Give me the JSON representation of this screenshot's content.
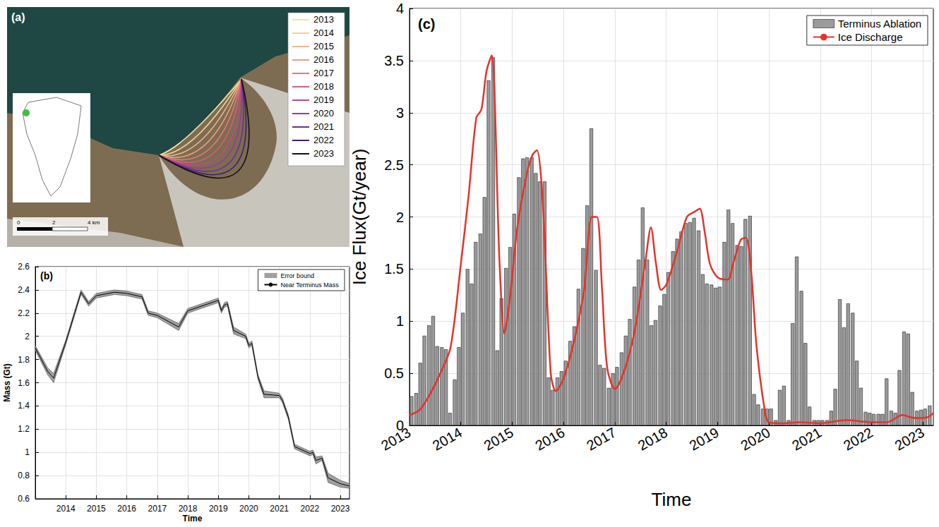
{
  "map": {
    "label": "(a)",
    "legend": [
      {
        "year": "2013",
        "color": "#f5e6a6"
      },
      {
        "year": "2014",
        "color": "#f2d196"
      },
      {
        "year": "2015",
        "color": "#efb98b"
      },
      {
        "year": "2016",
        "color": "#ea9e80"
      },
      {
        "year": "2017",
        "color": "#e5787a"
      },
      {
        "year": "2018",
        "color": "#d95c7e"
      },
      {
        "year": "2019",
        "color": "#bd4a8c"
      },
      {
        "year": "2020",
        "color": "#983b96"
      },
      {
        "year": "2021",
        "color": "#6c2d98"
      },
      {
        "year": "2022",
        "color": "#44206e"
      },
      {
        "year": "2023",
        "color": "#111111"
      }
    ],
    "scale_labels": [
      "0",
      "2",
      "4 km"
    ]
  },
  "chart_data": [
    {
      "type": "line",
      "label": "(b)",
      "x_label": "Time",
      "y_label": "Mass (Gt)",
      "xlim": [
        2013,
        2023.3
      ],
      "xticks": [
        2014,
        2015,
        2016,
        2017,
        2018,
        2019,
        2020,
        2021,
        2022,
        2023
      ],
      "ylim": [
        0.6,
        2.6
      ],
      "yticks": [
        0.6,
        0.8,
        1,
        1.2,
        1.4,
        1.6,
        1.8,
        2,
        2.2,
        2.4,
        2.6
      ],
      "grid": true,
      "legend": "upper right",
      "x": [
        2013.0,
        2013.4,
        2013.6,
        2014.0,
        2014.5,
        2014.75,
        2015.0,
        2015.6,
        2016.0,
        2016.5,
        2016.7,
        2017.0,
        2017.7,
        2018.0,
        2019.0,
        2019.1,
        2019.2,
        2019.3,
        2019.5,
        2019.9,
        2020.0,
        2020.1,
        2020.3,
        2020.5,
        2021.0,
        2021.1,
        2021.3,
        2021.5,
        2022.0,
        2022.1,
        2022.2,
        2022.4,
        2022.6,
        2023.0,
        2023.3
      ],
      "series": [
        {
          "name": "Error bound",
          "type": "band",
          "color": "#a0a0a0",
          "lower": [
            1.88,
            1.67,
            1.6,
            1.93,
            2.36,
            2.26,
            2.33,
            2.36,
            2.35,
            2.32,
            2.18,
            2.16,
            2.05,
            2.2,
            2.29,
            2.2,
            2.25,
            2.26,
            2.02,
            1.98,
            1.9,
            1.92,
            1.63,
            1.47,
            1.47,
            1.43,
            1.28,
            1.03,
            0.97,
            0.98,
            0.9,
            0.93,
            0.74,
            0.7,
            0.69
          ],
          "upper": [
            1.92,
            1.73,
            1.68,
            1.97,
            2.4,
            2.3,
            2.37,
            2.4,
            2.39,
            2.36,
            2.22,
            2.2,
            2.11,
            2.24,
            2.33,
            2.24,
            2.29,
            2.3,
            2.08,
            2.02,
            1.94,
            1.96,
            1.67,
            1.53,
            1.51,
            1.47,
            1.32,
            1.07,
            1.01,
            1.02,
            0.96,
            0.97,
            0.82,
            0.76,
            0.73
          ]
        },
        {
          "name": "Near Terminus Mass",
          "type": "line",
          "color": "#000000",
          "values": [
            1.9,
            1.7,
            1.64,
            1.95,
            2.38,
            2.28,
            2.35,
            2.38,
            2.37,
            2.34,
            2.2,
            2.18,
            2.08,
            2.22,
            2.31,
            2.22,
            2.27,
            2.28,
            2.05,
            2.0,
            1.92,
            1.94,
            1.65,
            1.5,
            1.49,
            1.45,
            1.3,
            1.05,
            0.99,
            1.0,
            0.93,
            0.95,
            0.78,
            0.73,
            0.71
          ]
        }
      ]
    },
    {
      "type": "bar",
      "label": "(c)",
      "x_label": "Time",
      "y_label": "Ice Flux(Gt/year)",
      "xlim": [
        2013,
        2023.2
      ],
      "xticks": [
        2013,
        2014,
        2015,
        2016,
        2017,
        2018,
        2019,
        2020,
        2021,
        2022,
        2023
      ],
      "ylim": [
        0,
        4
      ],
      "yticks": [
        0,
        0.5,
        1,
        1.5,
        2,
        2.5,
        3,
        3.5,
        4
      ],
      "grid": true,
      "legend": "upper right",
      "series": [
        {
          "name": "Terminus Ablation",
          "type": "bar",
          "color": "#9b9b9b",
          "x": [
            2013.04,
            2013.13,
            2013.21,
            2013.29,
            2013.38,
            2013.46,
            2013.54,
            2013.63,
            2013.71,
            2013.79,
            2013.88,
            2013.96,
            2014.04,
            2014.13,
            2014.21,
            2014.29,
            2014.38,
            2014.46,
            2014.54,
            2014.63,
            2014.71,
            2014.79,
            2014.88,
            2014.96,
            2015.04,
            2015.13,
            2015.21,
            2015.29,
            2015.38,
            2015.46,
            2015.54,
            2015.63,
            2015.71,
            2015.79,
            2015.88,
            2015.96,
            2016.04,
            2016.13,
            2016.21,
            2016.29,
            2016.38,
            2016.46,
            2016.54,
            2016.63,
            2016.71,
            2016.79,
            2016.88,
            2016.96,
            2017.04,
            2017.13,
            2017.21,
            2017.29,
            2017.38,
            2017.46,
            2017.54,
            2017.63,
            2017.71,
            2017.79,
            2017.88,
            2017.96,
            2018.04,
            2018.13,
            2018.21,
            2018.29,
            2018.38,
            2018.46,
            2018.54,
            2018.63,
            2018.71,
            2018.79,
            2018.88,
            2018.96,
            2019.04,
            2019.13,
            2019.21,
            2019.29,
            2019.38,
            2019.46,
            2019.54,
            2019.63,
            2019.71,
            2019.79,
            2019.88,
            2019.96,
            2020.04,
            2020.13,
            2020.21,
            2020.29,
            2020.38,
            2020.46,
            2020.54,
            2020.63,
            2020.71,
            2020.79,
            2020.88,
            2020.96,
            2021.04,
            2021.13,
            2021.21,
            2021.29,
            2021.38,
            2021.46,
            2021.54,
            2021.63,
            2021.71,
            2021.79,
            2021.88,
            2021.96,
            2022.04,
            2022.13,
            2022.21,
            2022.29,
            2022.38,
            2022.46,
            2022.54,
            2022.63,
            2022.71,
            2022.79,
            2022.88,
            2022.96,
            2023.04,
            2023.13
          ],
          "values": [
            0.28,
            0.31,
            0.6,
            0.86,
            0.96,
            1.05,
            0.76,
            0.75,
            0.73,
            0.12,
            0.44,
            0.75,
            1.08,
            1.5,
            1.36,
            1.76,
            1.84,
            2.19,
            3.31,
            3.53,
            0.72,
            1.22,
            1.51,
            1.71,
            2.03,
            2.38,
            2.56,
            2.57,
            2.57,
            2.42,
            2.34,
            2.34,
            0.46,
            0.34,
            0.46,
            0.52,
            0.62,
            0.81,
            0.95,
            1.31,
            1.7,
            2.11,
            2.85,
            1.49,
            0.58,
            0.55,
            0.36,
            0.5,
            0.56,
            0.7,
            0.86,
            1.02,
            1.33,
            1.59,
            2.09,
            1.59,
            0.96,
            1.01,
            1.15,
            1.26,
            1.47,
            1.67,
            1.79,
            1.86,
            1.94,
            1.95,
            1.99,
            1.87,
            1.45,
            1.36,
            1.35,
            1.32,
            1.33,
            1.76,
            2.07,
            1.94,
            1.73,
            1.72,
            1.98,
            2.01,
            0.3,
            0.2,
            0.16,
            0.16,
            0.16,
            0.05,
            0.34,
            0.38,
            0.05,
            0.98,
            1.62,
            1.29,
            0.79,
            0.18,
            0.05,
            0.05,
            0.05,
            0.05,
            0.14,
            0.35,
            1.21,
            0.94,
            1.17,
            1.08,
            0.62,
            0.36,
            0.13,
            0.12,
            0.11,
            0.11,
            0.11,
            0.45,
            0.14,
            0.12,
            0.53,
            0.9,
            0.88,
            0.32,
            0.14,
            0.15,
            0.16,
            0.19
          ]
        },
        {
          "name": "Ice Discharge",
          "type": "line",
          "color": "#e8312a",
          "x": [
            2013.0,
            2013.2,
            2013.4,
            2013.6,
            2013.8,
            2014.0,
            2014.15,
            2014.3,
            2014.4,
            2014.5,
            2014.6,
            2014.75,
            2014.85,
            2014.95,
            2015.1,
            2015.3,
            2015.4,
            2015.48,
            2015.6,
            2015.75,
            2015.85,
            2016.0,
            2016.2,
            2016.4,
            2016.55,
            2016.65,
            2016.75,
            2016.85,
            2017.0,
            2017.2,
            2017.4,
            2017.6,
            2017.7,
            2017.8,
            2017.9,
            2018.0,
            2018.2,
            2018.4,
            2018.55,
            2018.65,
            2018.75,
            2018.85,
            2019.0,
            2019.2,
            2019.3,
            2019.45,
            2019.55,
            2019.65,
            2019.75,
            2019.9,
            2020.0,
            2020.3,
            2020.6,
            2021.0,
            2021.5,
            2022.0,
            2022.3,
            2022.6,
            2022.75,
            2022.9,
            2023.1,
            2023.2
          ],
          "values": [
            0.1,
            0.15,
            0.3,
            0.5,
            0.75,
            1.55,
            2.2,
            2.95,
            3.03,
            3.4,
            3.55,
            1.6,
            0.88,
            1.2,
            1.9,
            2.45,
            2.6,
            2.64,
            2.1,
            0.5,
            0.33,
            0.45,
            0.8,
            1.3,
            2.0,
            2.0,
            1.3,
            0.55,
            0.35,
            0.55,
            0.95,
            1.6,
            1.9,
            1.55,
            1.3,
            1.35,
            1.65,
            2.0,
            2.05,
            2.08,
            1.85,
            1.55,
            1.42,
            1.4,
            1.55,
            1.78,
            1.8,
            1.5,
            0.8,
            0.2,
            0.03,
            0.02,
            0.03,
            0.02,
            0.05,
            0.03,
            0.03,
            0.1,
            0.08,
            0.07,
            0.08,
            0.12
          ]
        }
      ]
    }
  ]
}
